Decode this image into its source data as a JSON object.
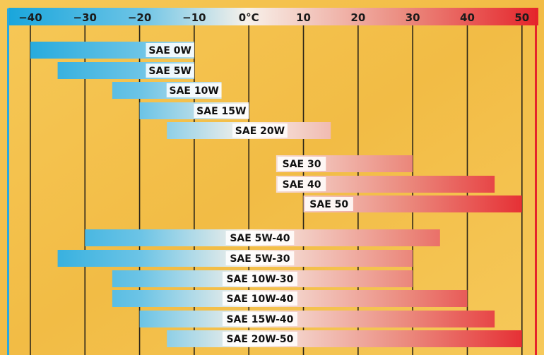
{
  "chart_data": {
    "type": "bar",
    "orientation": "horizontal-range",
    "title": "",
    "xlabel": "",
    "ylabel": "",
    "xlim": [
      -44,
      53
    ],
    "x_ticks": [
      -40,
      -30,
      -20,
      -10,
      0,
      10,
      20,
      30,
      40,
      50
    ],
    "x_tick_labels": [
      "−40",
      "−30",
      "−20",
      "−10",
      "0°C",
      "10",
      "20",
      "30",
      "40",
      "50"
    ],
    "grid": true,
    "colors": {
      "cold": "#1aa6dc",
      "neutral": "#f7f1ea",
      "hot": "#e5242b",
      "background": "#f3c24e",
      "grid": "#2a2418"
    },
    "series": [
      {
        "label": "SAE 0W",
        "min": -40,
        "max": -10
      },
      {
        "label": "SAE 5W",
        "min": -35,
        "max": -10
      },
      {
        "label": "SAE 10W",
        "min": -25,
        "max": -5
      },
      {
        "label": "SAE 15W",
        "min": -20,
        "max": 0
      },
      {
        "label": "SAE 20W",
        "min": -15,
        "max": 15
      },
      {
        "label": "SAE 30",
        "min": 5,
        "max": 30
      },
      {
        "label": "SAE 40",
        "min": 5,
        "max": 45
      },
      {
        "label": "SAE 50",
        "min": 10,
        "max": 50
      },
      {
        "label": "SAE 5W-40",
        "min": -30,
        "max": 35
      },
      {
        "label": "SAE 5W-30",
        "min": -35,
        "max": 30
      },
      {
        "label": "SAE 10W-30",
        "min": -25,
        "max": 30
      },
      {
        "label": "SAE 10W-40",
        "min": -25,
        "max": 40
      },
      {
        "label": "SAE 15W-40",
        "min": -20,
        "max": 45
      },
      {
        "label": "SAE 20W-50",
        "min": -15,
        "max": 50
      }
    ]
  }
}
